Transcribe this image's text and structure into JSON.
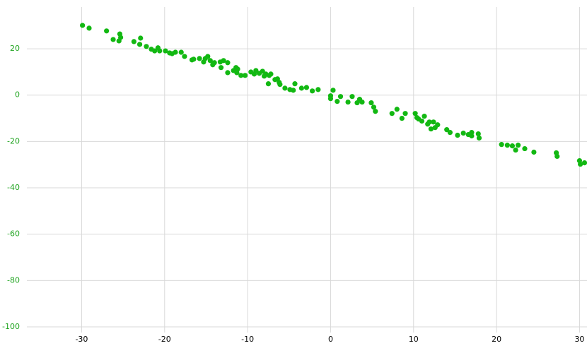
{
  "chart_data": {
    "type": "scatter",
    "x": [
      -29.9,
      -29.1,
      -27.0,
      -26.2,
      -25.4,
      -25.3,
      -25.5,
      -23.7,
      -22.9,
      -23.0,
      -22.2,
      -21.6,
      -21.2,
      -20.8,
      -20.6,
      -19.9,
      -19.4,
      -19.1,
      -18.7,
      -18.0,
      -17.6,
      -16.7,
      -16.5,
      -15.8,
      -15.3,
      -15.1,
      -14.8,
      -14.5,
      -14.2,
      -14.0,
      -13.3,
      -12.9,
      -13.2,
      -12.4,
      -12.4,
      -11.7,
      -11.4,
      -11.2,
      -11.3,
      -10.8,
      -10.3,
      -9.6,
      -9.2,
      -9.0,
      -8.6,
      -8.2,
      -8.0,
      -7.8,
      -7.4,
      -7.2,
      -7.5,
      -6.7,
      -6.4,
      -6.2,
      -6.1,
      -5.5,
      -4.9,
      -4.5,
      -4.3,
      -3.5,
      -2.9,
      -2.2,
      -1.5,
      0,
      0,
      0.3,
      0.8,
      1.2,
      2.1,
      2.6,
      3.2,
      3.5,
      3.8,
      4.9,
      5.2,
      5.4,
      7.4,
      8.0,
      8.6,
      9.0,
      10.2,
      10.4,
      10.6,
      11.0,
      11.3,
      11.7,
      11.9,
      12.1,
      12.4,
      12.6,
      12.9,
      14.0,
      14.4,
      15.3,
      16.0,
      16.6,
      17.0,
      17.0,
      17.8,
      17.9,
      20.6,
      21.3,
      21.9,
      22.3,
      22.6,
      23.4,
      24.5,
      27.2,
      27.3,
      30.0,
      30.1,
      30.6
    ],
    "y": [
      30.1,
      28.9,
      27.7,
      24.0,
      26.4,
      24.9,
      23.4,
      23.1,
      24.6,
      21.9,
      21.0,
      19.8,
      19.1,
      20.4,
      19.1,
      19.1,
      18.2,
      17.9,
      18.5,
      18.5,
      16.7,
      15.2,
      15.5,
      15.8,
      14.3,
      15.8,
      16.7,
      14.9,
      13.1,
      14.0,
      14.3,
      14.9,
      11.9,
      14.0,
      9.7,
      10.6,
      11.9,
      11.2,
      9.7,
      8.5,
      8.5,
      10.0,
      9.1,
      10.6,
      9.4,
      10.3,
      8.2,
      9.1,
      8.5,
      9.1,
      4.9,
      6.7,
      7.0,
      5.5,
      4.6,
      3.0,
      2.4,
      2.1,
      4.9,
      3.0,
      3.3,
      1.8,
      2.4,
      -0.3,
      -1.5,
      2.1,
      -2.7,
      -0.6,
      -3.0,
      -0.6,
      -3.3,
      -1.8,
      -3.0,
      -3.3,
      -5.2,
      -7.0,
      -7.9,
      -6.1,
      -10.0,
      -7.9,
      -7.9,
      -9.7,
      -10.3,
      -11.2,
      -9.1,
      -12.5,
      -11.6,
      -14.6,
      -11.6,
      -14.0,
      -12.8,
      -14.9,
      -16.1,
      -17.3,
      -16.4,
      -17.0,
      -16.1,
      -17.6,
      -16.7,
      -18.5,
      -21.3,
      -21.6,
      -21.9,
      -23.7,
      -21.6,
      -23.1,
      -24.6,
      -24.9,
      -26.4,
      -28.3,
      -29.8,
      -29.2
    ],
    "color": "#12b812",
    "ytick_color": "#22a522",
    "xlim": [
      -36.6,
      30.9
    ],
    "ylim": [
      -100,
      38
    ],
    "xticks": [
      -30,
      -20,
      -10,
      0,
      10,
      20,
      30
    ],
    "yticks": [
      -100,
      -80,
      -60,
      -40,
      -20,
      0,
      20
    ],
    "grid": true
  }
}
